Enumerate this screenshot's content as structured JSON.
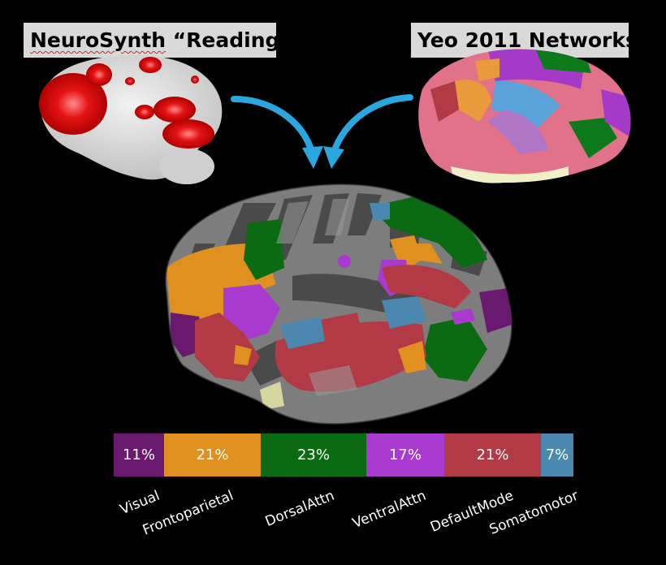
{
  "labels": {
    "left_title_prefix": "NeuroSynth",
    "left_title_suffix": "“Reading”",
    "right_title": "Yeo 2011 Networks"
  },
  "colors": {
    "visual": "#6a1a6e",
    "frontoparietal": "#e0901e",
    "dorsalattn": "#0b6b12",
    "ventralattn": "#a93ad0",
    "defaultmode": "#b23a44",
    "somatomotor": "#4a88b0",
    "arrow": "#29a8e0",
    "reading_activation": "#e01010"
  },
  "chart_data": {
    "type": "bar",
    "stacked": true,
    "categories": [
      "Visual",
      "Frontoparietal",
      "DorsalAttn",
      "VentralAttn",
      "DefaultMode",
      "Somatomotor"
    ],
    "values": [
      11,
      21,
      23,
      17,
      21,
      7
    ],
    "value_labels": [
      "11%",
      "21%",
      "23%",
      "17%",
      "21%",
      "7%"
    ]
  }
}
